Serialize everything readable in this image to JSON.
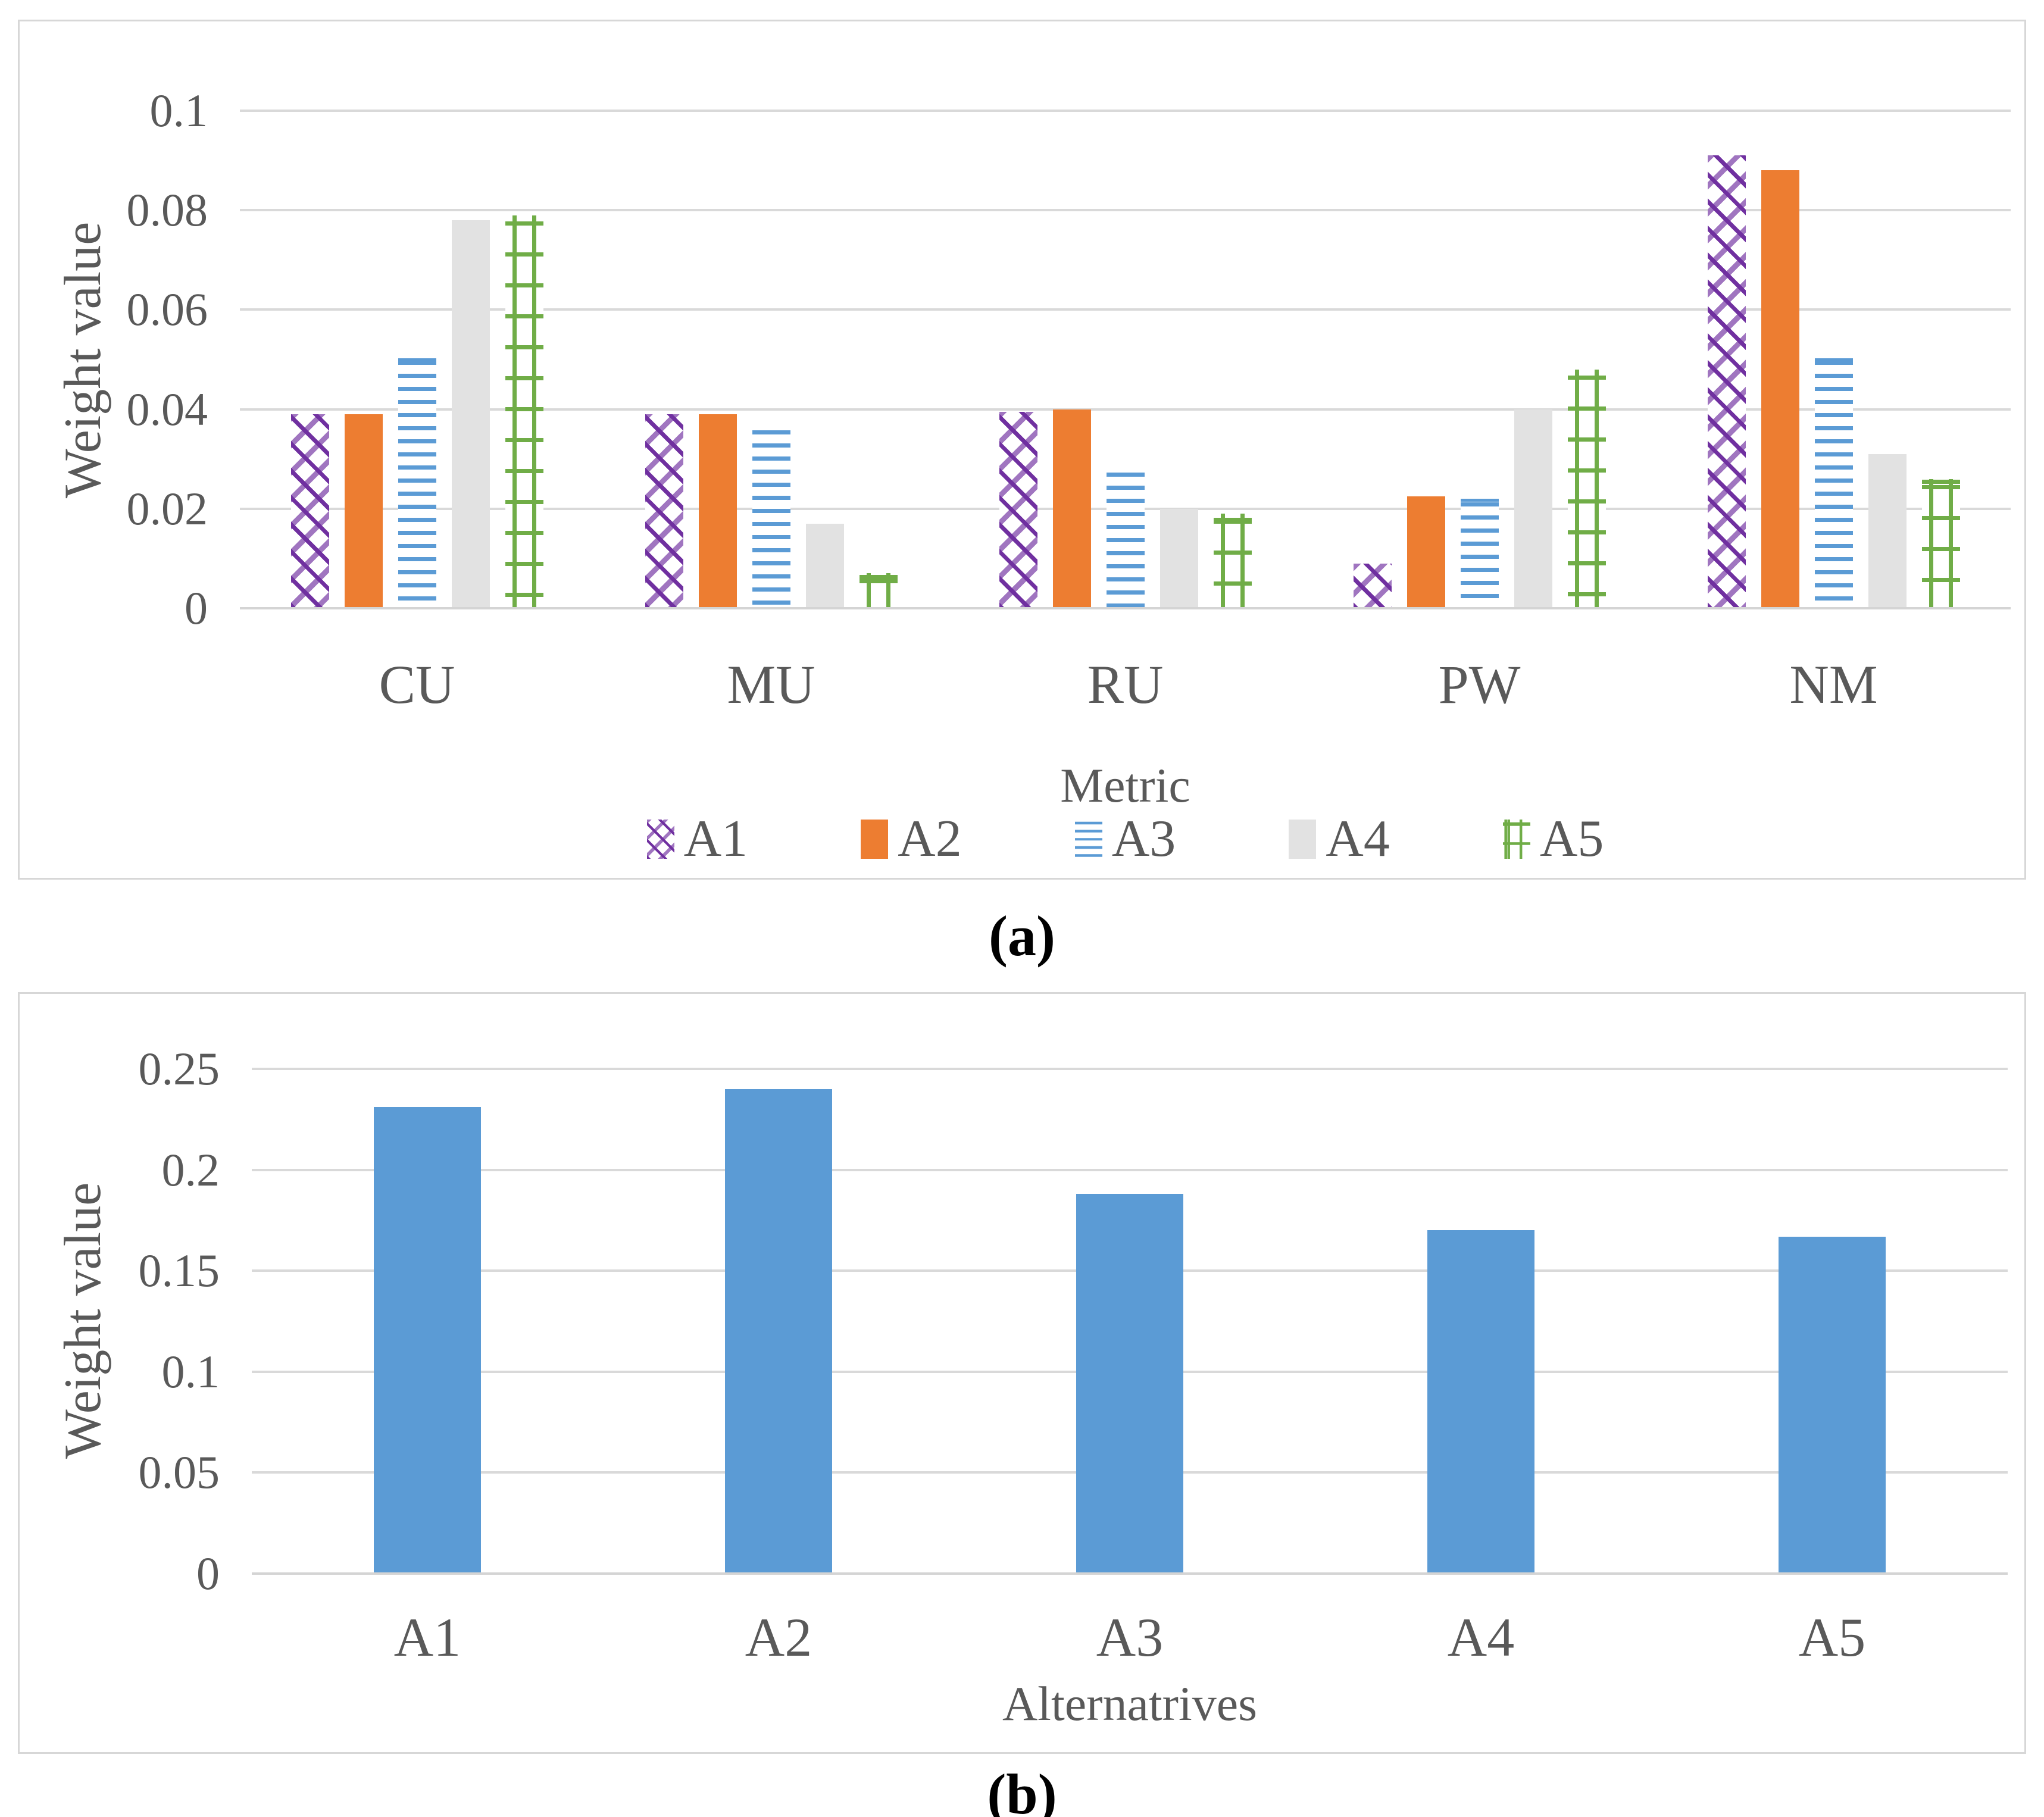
{
  "figure": {
    "caption_a": "(a)",
    "caption_b": "(b)"
  },
  "colors": {
    "gridline": "#d9d9d9",
    "axis_text": "#595959",
    "panel_border": "#d7d7d7",
    "background": "#ffffff"
  },
  "chart_data": [
    {
      "id": "a",
      "type": "bar",
      "title": "",
      "xlabel": "Metric",
      "ylabel": "Weight value",
      "categories": [
        "CU",
        "MU",
        "RU",
        "PW",
        "NM"
      ],
      "series": [
        {
          "name": "A1",
          "color": "#7030A0",
          "pattern": "crosshatch",
          "values": [
            0.039,
            0.039,
            0.0395,
            0.009,
            0.091
          ]
        },
        {
          "name": "A2",
          "color": "#ED7D31",
          "pattern": "solid",
          "values": [
            0.039,
            0.039,
            0.04,
            0.0225,
            0.088
          ]
        },
        {
          "name": "A3",
          "color": "#5B9BD5",
          "pattern": "hlines",
          "values": [
            0.0505,
            0.0365,
            0.028,
            0.022,
            0.0505
          ]
        },
        {
          "name": "A4",
          "color": "#E2E2E2",
          "pattern": "solid",
          "values": [
            0.078,
            0.017,
            0.02,
            0.04,
            0.031
          ]
        },
        {
          "name": "A5",
          "color": "#70AD47",
          "pattern": "grid",
          "values": [
            0.079,
            0.007,
            0.019,
            0.048,
            0.026
          ]
        }
      ],
      "ylim": [
        0,
        0.1
      ],
      "yticks": [
        0.1,
        0.08,
        0.06,
        0.04,
        0.02,
        0
      ],
      "ytick_labels": [
        "0.1",
        "0.08",
        "0.06",
        "0.04",
        "0.02",
        "0"
      ],
      "grid": true,
      "legend_position": "bottom"
    },
    {
      "id": "b",
      "type": "bar",
      "title": "",
      "xlabel": "Alternatrives",
      "ylabel": "Weight value",
      "categories": [
        "A1",
        "A2",
        "A3",
        "A4",
        "A5"
      ],
      "values": [
        0.231,
        0.24,
        0.188,
        0.17,
        0.167
      ],
      "bar_color": "#5B9BD5",
      "ylim": [
        0,
        0.25
      ],
      "yticks": [
        0.25,
        0.2,
        0.15,
        0.1,
        0.05,
        0
      ],
      "ytick_labels": [
        "0.25",
        "0.2",
        "0.15",
        "0.1",
        "0.05",
        "0"
      ],
      "grid": true,
      "legend_position": "none"
    }
  ]
}
